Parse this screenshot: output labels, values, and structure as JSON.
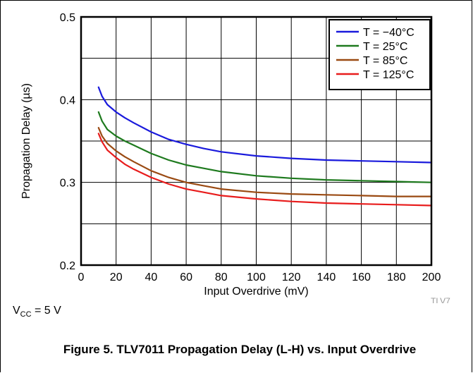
{
  "chart_data": {
    "type": "line",
    "xlabel": "Input Overdrive (mV)",
    "ylabel": "Propagation Delay (µs)",
    "xlim": [
      0,
      200
    ],
    "ylim": [
      0.2,
      0.5
    ],
    "x_ticks": [
      "0",
      "20",
      "40",
      "60",
      "80",
      "100",
      "120",
      "140",
      "160",
      "180",
      "200"
    ],
    "y_ticks": [
      "0.2",
      "0.3",
      "0.4",
      "0.5"
    ],
    "grid": true,
    "legend_position": "top-right",
    "x": [
      10,
      12,
      15,
      20,
      25,
      30,
      40,
      50,
      60,
      70,
      80,
      100,
      120,
      140,
      160,
      180,
      200
    ],
    "series": [
      {
        "name": "T = −40°C",
        "color": "#1a1adc",
        "values": [
          0.415,
          0.404,
          0.394,
          0.385,
          0.378,
          0.372,
          0.361,
          0.352,
          0.346,
          0.341,
          0.337,
          0.332,
          0.329,
          0.327,
          0.326,
          0.325,
          0.324
        ]
      },
      {
        "name": "T = 25°C",
        "color": "#1e7a1e",
        "values": [
          0.385,
          0.374,
          0.364,
          0.356,
          0.35,
          0.345,
          0.335,
          0.327,
          0.321,
          0.317,
          0.313,
          0.308,
          0.305,
          0.303,
          0.302,
          0.301,
          0.3
        ]
      },
      {
        "name": "T = 85°C",
        "color": "#9a4a12",
        "values": [
          0.366,
          0.356,
          0.347,
          0.338,
          0.331,
          0.325,
          0.314,
          0.306,
          0.3,
          0.296,
          0.292,
          0.288,
          0.286,
          0.285,
          0.284,
          0.283,
          0.283
        ]
      },
      {
        "name": "T = 125°C",
        "color": "#e81c1c",
        "values": [
          0.359,
          0.349,
          0.339,
          0.33,
          0.322,
          0.316,
          0.306,
          0.298,
          0.292,
          0.288,
          0.284,
          0.28,
          0.277,
          0.275,
          0.274,
          0.273,
          0.272
        ]
      }
    ]
  },
  "figure_id": "TLV7",
  "condition": {
    "prefix": "V",
    "sub": "CC",
    "suffix": " = 5 V"
  },
  "caption": "Figure 5. TLV7011 Propagation Delay (L-H) vs. Input Overdrive"
}
